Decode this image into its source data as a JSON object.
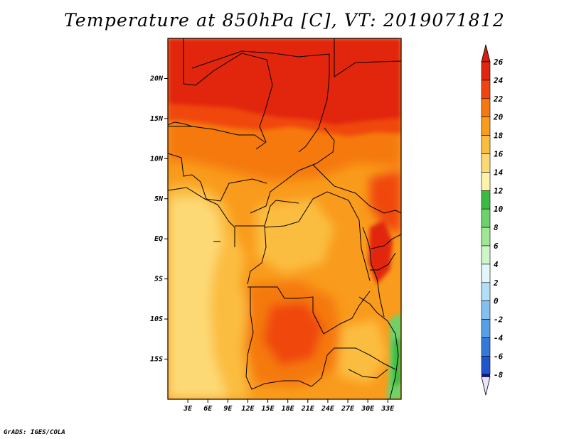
{
  "title": "Temperature at 850hPa [C], VT: 2019071812",
  "footer": "GrADS: IGES/COLA",
  "map": {
    "lon_range": [
      0,
      35
    ],
    "lat_range": [
      -20,
      25
    ],
    "lat_ticks": [
      {
        "value": 20,
        "label": "20N"
      },
      {
        "value": 15,
        "label": "15N"
      },
      {
        "value": 10,
        "label": "10N"
      },
      {
        "value": 5,
        "label": "5N"
      },
      {
        "value": 0,
        "label": "EQ"
      },
      {
        "value": -5,
        "label": "5S"
      },
      {
        "value": -10,
        "label": "10S"
      },
      {
        "value": -15,
        "label": "15S"
      }
    ],
    "lon_ticks": [
      {
        "value": 3,
        "label": "3E"
      },
      {
        "value": 6,
        "label": "6E"
      },
      {
        "value": 9,
        "label": "9E"
      },
      {
        "value": 12,
        "label": "12E"
      },
      {
        "value": 15,
        "label": "15E"
      },
      {
        "value": 18,
        "label": "18E"
      },
      {
        "value": 21,
        "label": "21E"
      },
      {
        "value": 24,
        "label": "24E"
      },
      {
        "value": 27,
        "label": "27E"
      },
      {
        "value": 30,
        "label": "30E"
      },
      {
        "value": 33,
        "label": "33E"
      }
    ]
  },
  "colorbar": {
    "levels": [
      {
        "label": "26",
        "color": "#e12610"
      },
      {
        "label": "24",
        "color": "#f0460e"
      },
      {
        "label": "22",
        "color": "#f5790f"
      },
      {
        "label": "20",
        "color": "#f99b1c"
      },
      {
        "label": "18",
        "color": "#fbbd3f"
      },
      {
        "label": "16",
        "color": "#fdd975"
      },
      {
        "label": "14",
        "color": "#fef3a8"
      },
      {
        "label": "12",
        "color": "#3cbb44"
      },
      {
        "label": "10",
        "color": "#6cd36a"
      },
      {
        "label": "8",
        "color": "#9ee894"
      },
      {
        "label": "6",
        "color": "#cdf6c6"
      },
      {
        "label": "4",
        "color": "#e2f6fd"
      },
      {
        "label": "2",
        "color": "#b3def8"
      },
      {
        "label": "0",
        "color": "#82c0f0"
      },
      {
        "label": "-2",
        "color": "#56a0e7"
      },
      {
        "label": "-4",
        "color": "#3578dc"
      },
      {
        "label": "-6",
        "color": "#1f55cd"
      },
      {
        "label": "-8",
        "color": "#1531b0"
      }
    ],
    "top_color": "#d21e10",
    "bottom_over_color": "#0c148a",
    "bottom_cap_color": "#e8e4fa"
  }
}
